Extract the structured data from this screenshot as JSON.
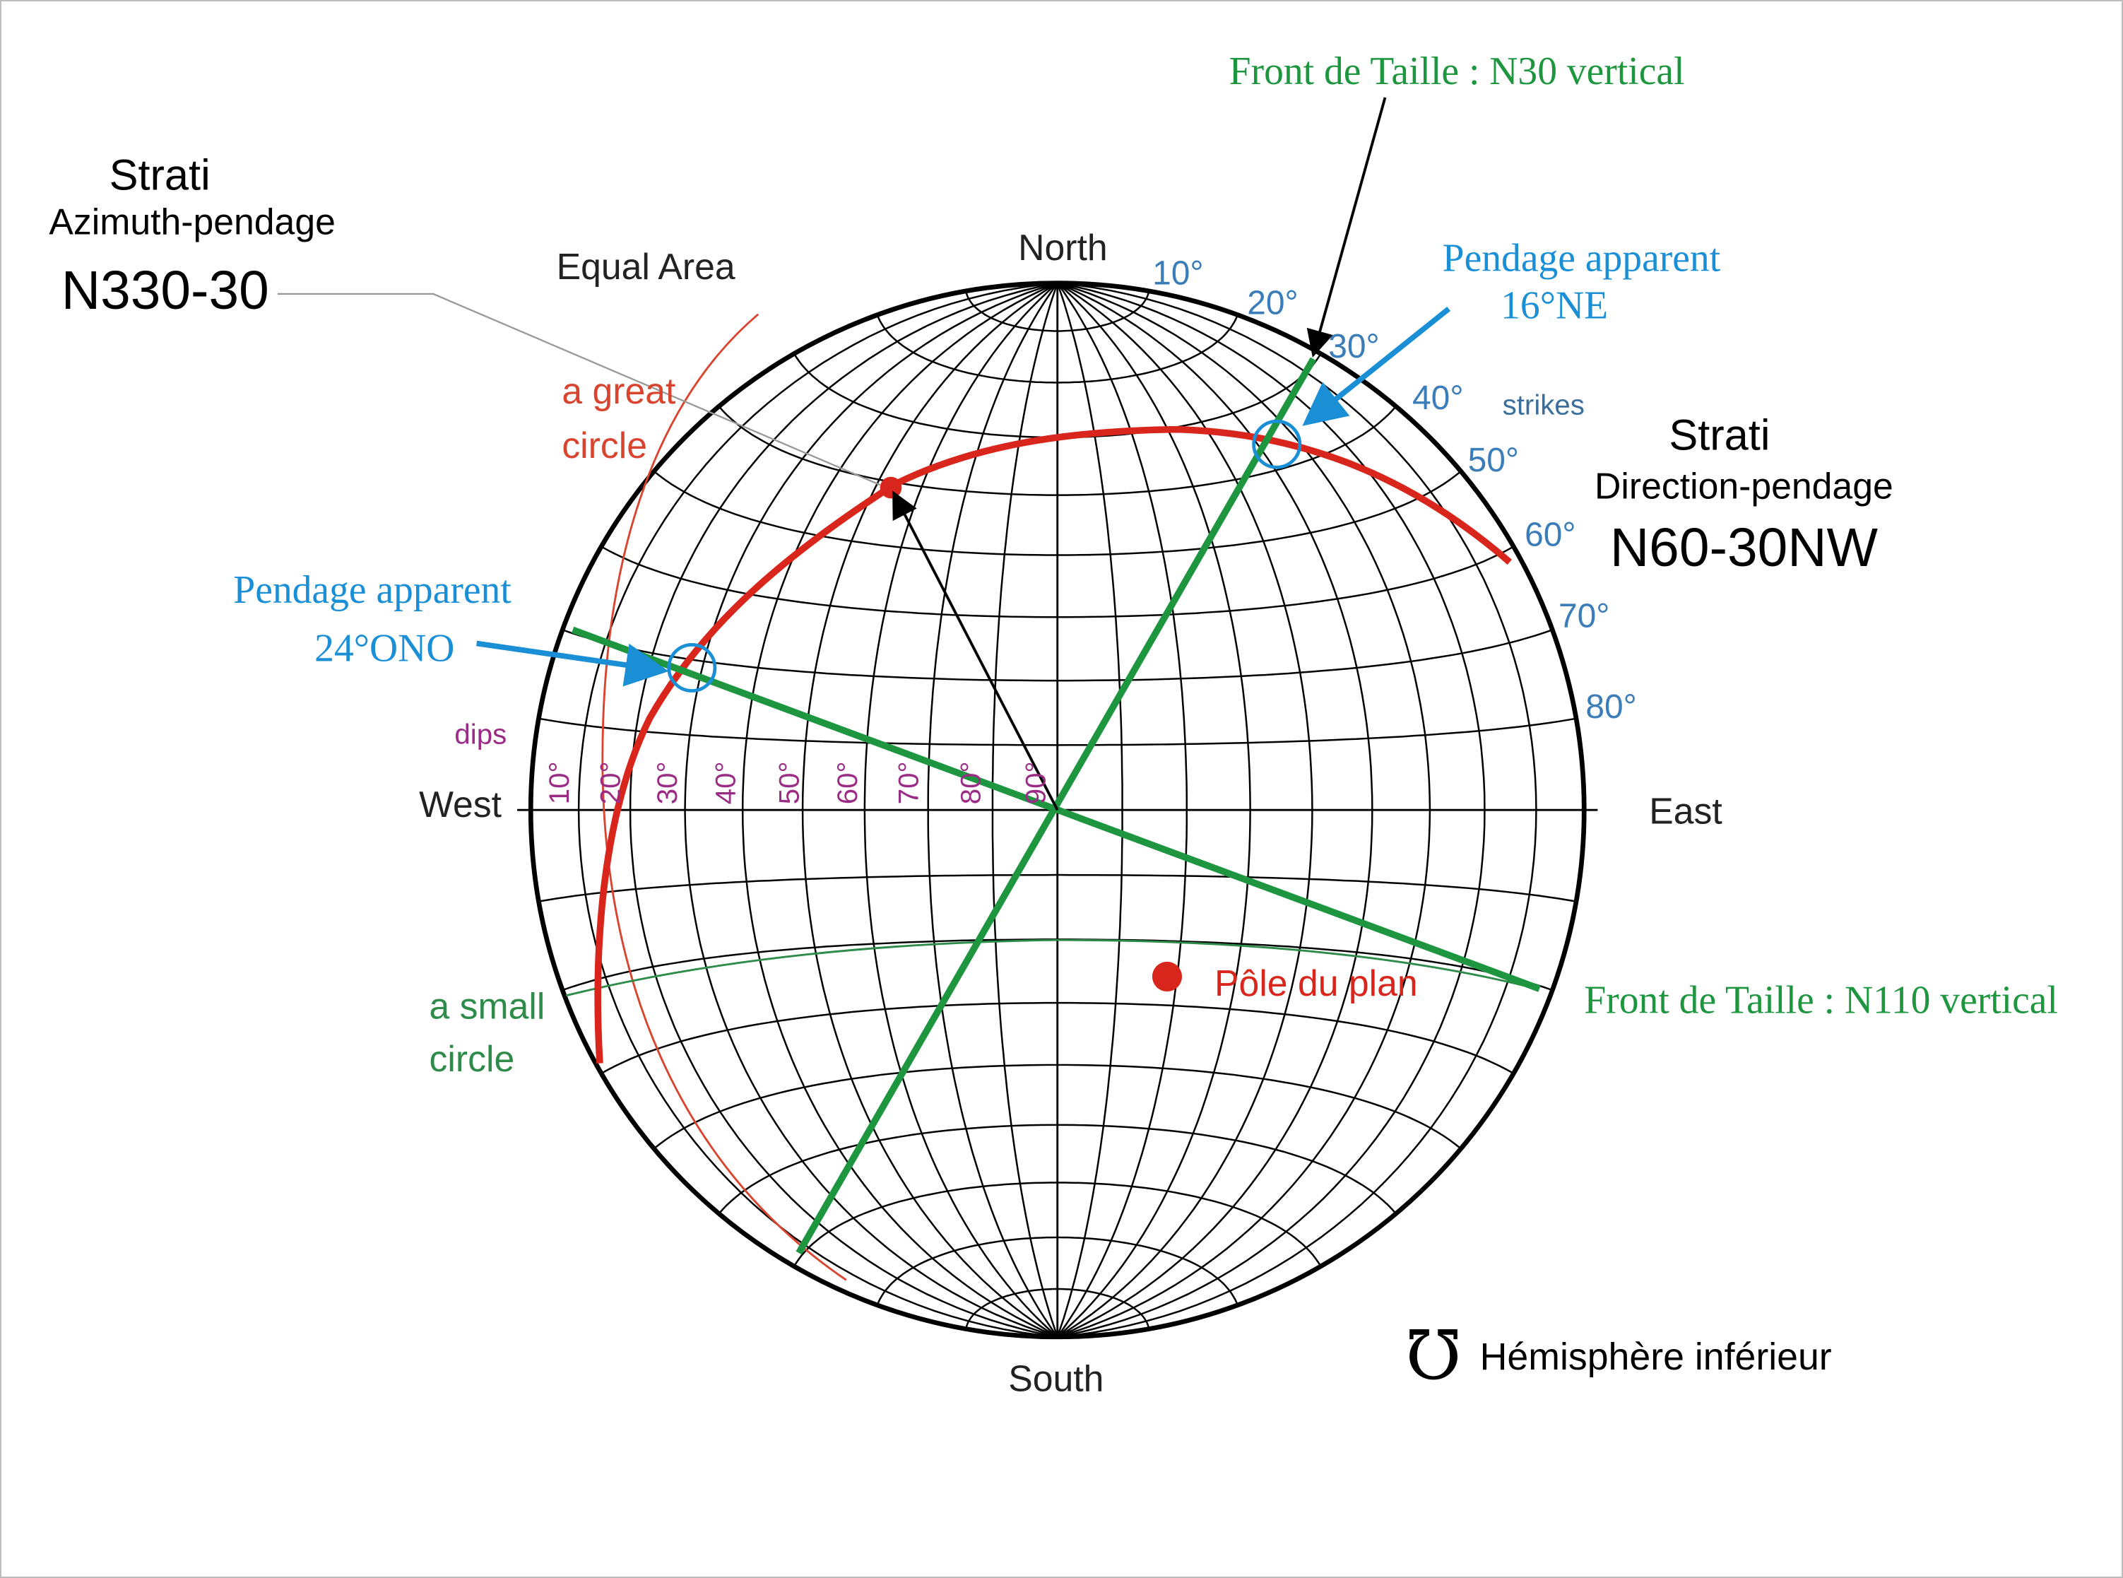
{
  "left_block": {
    "heading": "Strati",
    "subheading": "Azimuth-pendage",
    "value": "N330-30"
  },
  "right_block": {
    "heading": "Strati",
    "subheading": "Direction-pendage",
    "value": "N60-30NW"
  },
  "net": {
    "projection": "Equal Area",
    "north": "North",
    "south": "South",
    "west": "West",
    "east": "East",
    "strike_label": "strikes",
    "strike_ticks": [
      "10°",
      "20°",
      "30°",
      "40°",
      "50°",
      "60°",
      "70°",
      "80°"
    ],
    "dip_label": "dips",
    "dip_ticks": [
      "10°",
      "20°",
      "30°",
      "40°",
      "50°",
      "60°",
      "70°",
      "80°",
      "90°"
    ],
    "great_circle_label": [
      "a great",
      "circle"
    ],
    "small_circle_label": [
      "a small",
      "circle"
    ]
  },
  "annotations": {
    "face_n30": "Front de Taille : N30 vertical",
    "face_n110": "Front de Taille : N110 vertical",
    "apparent_ne": {
      "title": "Pendage apparent",
      "value": "16°NE"
    },
    "apparent_ono": {
      "title": "Pendage apparent",
      "value": "24°ONO"
    },
    "pole": "Pôle du plan",
    "hemisphere_symbol": "℧",
    "hemisphere": "Hémisphère inférieur"
  }
}
